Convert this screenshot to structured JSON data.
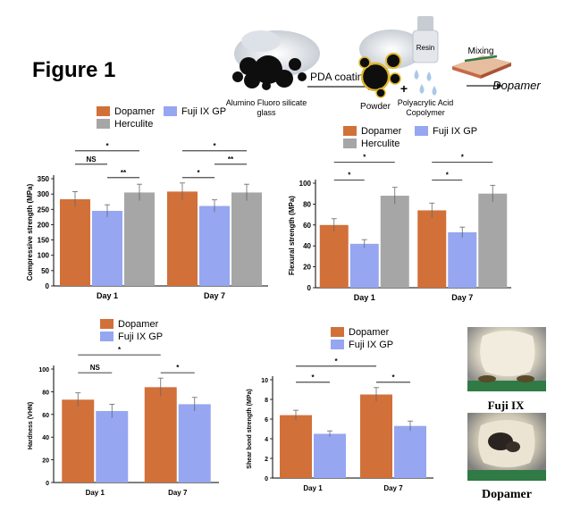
{
  "figure": {
    "title": "Figure 1",
    "schematic": {
      "glass_label_line1": "Alumino Fluoro silicate",
      "glass_label_line2": "glass",
      "arrow_label": "PDA coating",
      "powder_label": "Powder",
      "plus": "+",
      "resin_label": "Resin",
      "acid_label_line1": "Polyacrylic Acid",
      "acid_label_line2": "Copolymer",
      "mixing_label": "Mixing",
      "product_label": "Dopamer"
    },
    "photos": {
      "top_label": "Fuji IX",
      "bottom_label": "Dopamer"
    }
  },
  "colors": {
    "dopamer": "#d2703a",
    "fuji": "#96a6f0",
    "herculite": "#a6a6a6"
  },
  "chart_data": [
    {
      "id": "compressive",
      "type": "bar",
      "title": "",
      "ylabel": "Compressive strength (MPa)",
      "xlabel": "",
      "categories": [
        "Day 1",
        "Day 7"
      ],
      "ylim": [
        0,
        350
      ],
      "yticks": [
        0,
        50,
        100,
        150,
        200,
        250,
        300,
        350
      ],
      "legend": [
        "Dopamer",
        "Fuji IX GP",
        "Herculite"
      ],
      "series": [
        {
          "name": "Dopamer",
          "values": [
            283,
            308
          ],
          "errors": [
            25,
            28
          ]
        },
        {
          "name": "Fuji IX GP",
          "values": [
            245,
            261
          ],
          "errors": [
            20,
            20
          ]
        },
        {
          "name": "Herculite",
          "values": [
            305,
            305
          ],
          "errors": [
            27,
            27
          ]
        }
      ],
      "annotations": [
        {
          "group": 0,
          "from": 0,
          "to": 2,
          "level": 3,
          "label": "*"
        },
        {
          "group": 0,
          "from": 0,
          "to": 1,
          "level": 2,
          "label": "NS"
        },
        {
          "group": 0,
          "from": 1,
          "to": 2,
          "level": 1,
          "label": "**"
        },
        {
          "group": 1,
          "from": 0,
          "to": 2,
          "level": 3,
          "label": "*"
        },
        {
          "group": 1,
          "from": 1,
          "to": 2,
          "level": 2,
          "label": "**"
        },
        {
          "group": 1,
          "from": 0,
          "to": 1,
          "level": 1,
          "label": "*"
        }
      ]
    },
    {
      "id": "flexural",
      "type": "bar",
      "title": "",
      "ylabel": "Flexural strength (MPa)",
      "xlabel": "",
      "categories": [
        "Day 1",
        "Day 7"
      ],
      "ylim": [
        0,
        100
      ],
      "yticks": [
        0,
        20,
        40,
        60,
        80,
        100
      ],
      "legend": [
        "Dopamer",
        "Fuji IX GP",
        "Herculite"
      ],
      "series": [
        {
          "name": "Dopamer",
          "values": [
            60,
            74
          ],
          "errors": [
            6,
            7
          ]
        },
        {
          "name": "Fuji IX GP",
          "values": [
            42,
            53
          ],
          "errors": [
            4,
            5
          ]
        },
        {
          "name": "Herculite",
          "values": [
            88,
            90
          ],
          "errors": [
            8,
            8
          ]
        }
      ],
      "annotations": [
        {
          "group": 0,
          "from": 0,
          "to": 2,
          "level": 2,
          "label": "*"
        },
        {
          "group": 0,
          "from": 0,
          "to": 1,
          "level": 1,
          "label": "*"
        },
        {
          "group": 1,
          "from": 0,
          "to": 2,
          "level": 2,
          "label": "*"
        },
        {
          "group": 1,
          "from": 0,
          "to": 1,
          "level": 1,
          "label": "*"
        }
      ]
    },
    {
      "id": "hardness",
      "type": "bar",
      "title": "",
      "ylabel": "Hardness (VHN)",
      "xlabel": "",
      "categories": [
        "Day 1",
        "Day 7"
      ],
      "ylim": [
        0,
        100
      ],
      "yticks": [
        0,
        20,
        40,
        60,
        80,
        100
      ],
      "legend": [
        "Dopamer",
        "Fuji IX GP"
      ],
      "series": [
        {
          "name": "Dopamer",
          "values": [
            73,
            84
          ],
          "errors": [
            6,
            8
          ]
        },
        {
          "name": "Fuji IX GP",
          "values": [
            63,
            69
          ],
          "errors": [
            6,
            6
          ]
        }
      ],
      "annotations": [
        {
          "group": -1,
          "from": 0,
          "to": 0,
          "level": 2,
          "label": "*",
          "span": "day1-dopamer-to-day7-dopamer"
        },
        {
          "group": 0,
          "from": 0,
          "to": 1,
          "level": 1,
          "label": "NS"
        },
        {
          "group": 1,
          "from": 0,
          "to": 1,
          "level": 1,
          "label": "*"
        }
      ]
    },
    {
      "id": "shear",
      "type": "bar",
      "title": "",
      "ylabel": "Shear bond strength (MPa)",
      "xlabel": "",
      "categories": [
        "Day 1",
        "Day 7"
      ],
      "ylim": [
        0,
        10
      ],
      "yticks": [
        0,
        2,
        4,
        6,
        8,
        10
      ],
      "legend": [
        "Dopamer",
        "Fuji IX GP"
      ],
      "series": [
        {
          "name": "Dopamer",
          "values": [
            6.4,
            8.5
          ],
          "errors": [
            0.5,
            0.7
          ]
        },
        {
          "name": "Fuji IX GP",
          "values": [
            4.5,
            5.3
          ],
          "errors": [
            0.3,
            0.5
          ]
        }
      ],
      "annotations": [
        {
          "group": -1,
          "from": 0,
          "to": 0,
          "level": 2,
          "label": "*",
          "span": "day1-dopamer-to-day7-dopamer"
        },
        {
          "group": 0,
          "from": 0,
          "to": 1,
          "level": 1,
          "label": "*"
        },
        {
          "group": 1,
          "from": 0,
          "to": 1,
          "level": 1,
          "label": "*"
        }
      ]
    }
  ]
}
